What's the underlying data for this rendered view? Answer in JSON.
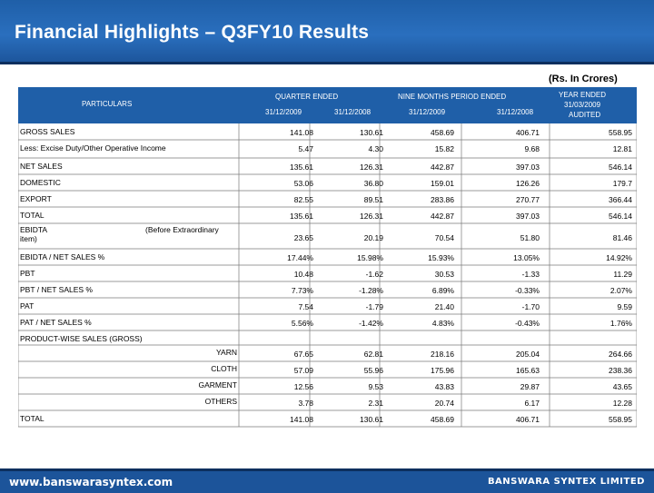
{
  "title": "Financial Highlights – Q3FY10 Results",
  "units": "(Rs. In Crores)",
  "table": {
    "particulars": "PARTICULARS",
    "groups": {
      "quarter": "QUARTER ENDED",
      "nine_months": "NINE MONTHS PERIOD ENDED",
      "year": "YEAR ENDED"
    },
    "dates": {
      "q1": "31/12/2009",
      "q2": "31/12/2008",
      "n1": "31/12/2009",
      "n2": "31/12/2008"
    },
    "year_date": "31/03/2009",
    "year_note": "AUDITED",
    "rows": [
      {
        "label": "GROSS SALES",
        "values": [
          "141.08",
          "130.61",
          "458.69",
          "406.71",
          "558.95"
        ]
      },
      {
        "label": "Less: Excise Duty/Other Operative Income",
        "values": [
          "5.47",
          "4.30",
          "15.82",
          "9.68",
          "12.81"
        ]
      },
      {
        "label": "NET SALES",
        "values": [
          "135.61",
          "126.31",
          "442.87",
          "397.03",
          "546.14"
        ]
      },
      {
        "label": "DOMESTIC",
        "values": [
          "53.06",
          "36.80",
          "159.01",
          "126.26",
          "179.7"
        ]
      },
      {
        "label": "EXPORT",
        "values": [
          "82.55",
          "89.51",
          "283.86",
          "270.77",
          "366.44"
        ]
      },
      {
        "label": "TOTAL",
        "values": [
          "135.61",
          "126.31",
          "442.87",
          "397.03",
          "546.14"
        ]
      },
      {
        "label": "EBIDTA",
        "label2": "item)",
        "note": "(Before Extraordinary",
        "values": [
          "23.65",
          "20.19",
          "70.54",
          "51.80",
          "81.46"
        ]
      },
      {
        "label": "EBIDTA / NET SALES %",
        "values": [
          "17.44%",
          "15.98%",
          "15.93%",
          "13.05%",
          "14.92%"
        ]
      },
      {
        "label": "PBT",
        "values": [
          "10.48",
          "-1.62",
          "30.53",
          "-1.33",
          "11.29"
        ]
      },
      {
        "label": "PBT / NET SALES %",
        "values": [
          "7.73%",
          "-1.28%",
          "6.89%",
          "-0.33%",
          "2.07%"
        ]
      },
      {
        "label": "PAT",
        "values": [
          "7.54",
          "-1.79",
          "21.40",
          "-1.70",
          "9.59"
        ]
      },
      {
        "label": "PAT / NET SALES %",
        "values": [
          "5.56%",
          "-1.42%",
          "4.83%",
          "-0.43%",
          "1.76%"
        ]
      }
    ],
    "product_heading": "PRODUCT-WISE SALES (GROSS)",
    "products": [
      {
        "label": "YARN",
        "values": [
          "67.65",
          "62.81",
          "218.16",
          "205.04",
          "264.66"
        ]
      },
      {
        "label": "CLOTH",
        "values": [
          "57.09",
          "55.96",
          "175.96",
          "165.63",
          "238.36"
        ]
      },
      {
        "label": "GARMENT",
        "values": [
          "12.56",
          "9.53",
          "43.83",
          "29.87",
          "43.65"
        ]
      },
      {
        "label": "OTHERS",
        "values": [
          "3.78",
          "2.31",
          "20.74",
          "6.17",
          "12.28"
        ]
      }
    ],
    "total": {
      "label": "TOTAL",
      "values": [
        "141.08",
        "130.61",
        "458.69",
        "406.71",
        "558.95"
      ]
    }
  },
  "footer": {
    "website": "www.banswarasyntex.com",
    "company": "BANSWARA SYNTEX LIMITED"
  },
  "colors": {
    "header_blue": "#1f5fa8",
    "table_header": "#1f5fa8",
    "grid": "#7a7a7a"
  }
}
